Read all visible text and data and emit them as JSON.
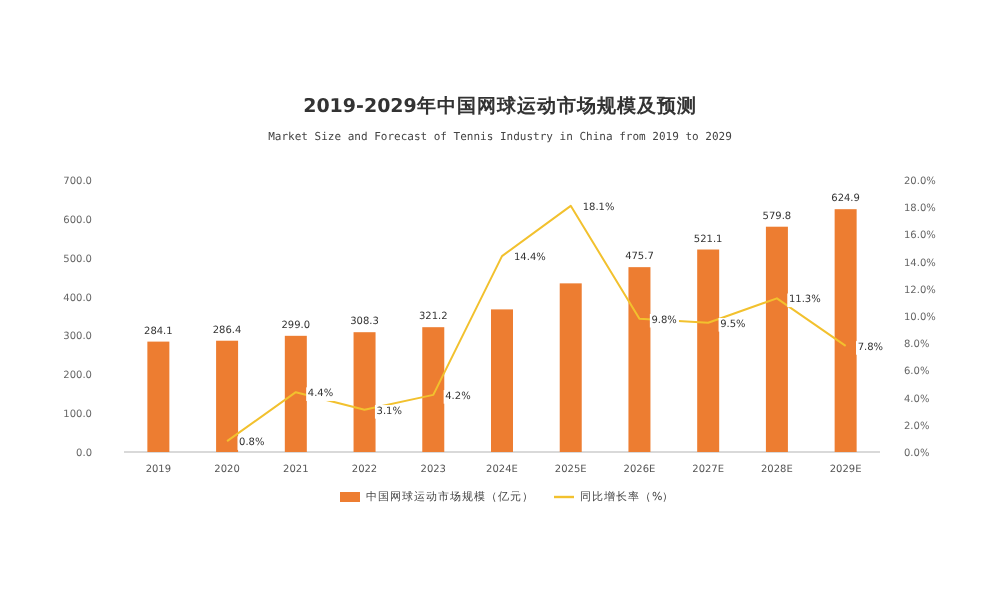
{
  "chart_data": {
    "type": "bar",
    "title": "2019-2029年中国网球运动市场规模及预测",
    "subtitle": "Market Size and Forecast of Tennis Industry in China from 2019 to 2029",
    "categories": [
      "2019",
      "2020",
      "2021",
      "2022",
      "2023",
      "2024E",
      "2025E",
      "2026E",
      "2027E",
      "2028E",
      "2029E"
    ],
    "series": [
      {
        "name": "中国网球运动市场规模（亿元）",
        "color": "#ed7d31",
        "values": [
          284.1,
          286.4,
          299.0,
          308.3,
          321.2,
          367,
          434,
          475.7,
          521.1,
          579.8,
          624.9
        ],
        "value_labels": [
          "284.1",
          "286.4",
          "299.0",
          "308.3",
          "321.2",
          null,
          null,
          "475.7",
          "521.1",
          "579.8",
          "624.9"
        ]
      },
      {
        "name": "同比增长率（%）",
        "type": "line",
        "axis": "y2",
        "color": "#f2c12e",
        "values": [
          null,
          0.8,
          4.4,
          3.1,
          4.2,
          14.4,
          18.1,
          9.8,
          9.5,
          11.3,
          7.8
        ],
        "value_labels": [
          null,
          "0.8%",
          "4.4%",
          "3.1%",
          "4.2%",
          "14.4%",
          "18.1%",
          "9.8%",
          "9.5%",
          "11.3%",
          "7.8%"
        ]
      }
    ],
    "ylim": [
      0,
      700
    ],
    "yticks": [
      {
        "value": 0,
        "label": "0.0"
      },
      {
        "value": 100,
        "label": "100.0"
      },
      {
        "value": 200,
        "label": "200.0"
      },
      {
        "value": 300,
        "label": "300.0"
      },
      {
        "value": 400,
        "label": "400.0"
      },
      {
        "value": 500,
        "label": "500.0"
      },
      {
        "value": 600,
        "label": "600.0"
      },
      {
        "value": 700,
        "label": "700.0"
      }
    ],
    "y2lim": [
      0,
      20
    ],
    "y2ticks": [
      {
        "value": 0,
        "label": "0.0%"
      },
      {
        "value": 2,
        "label": "2.0%"
      },
      {
        "value": 4,
        "label": "4.0%"
      },
      {
        "value": 6,
        "label": "6.0%"
      },
      {
        "value": 8,
        "label": "8.0%"
      },
      {
        "value": 10,
        "label": "10.0%"
      },
      {
        "value": 12,
        "label": "12.0%"
      },
      {
        "value": 14,
        "label": "14.0%"
      },
      {
        "value": 16,
        "label": "16.0%"
      },
      {
        "value": 18,
        "label": "18.0%"
      },
      {
        "value": 20,
        "label": "20.0%"
      }
    ],
    "legend": "bottom"
  }
}
